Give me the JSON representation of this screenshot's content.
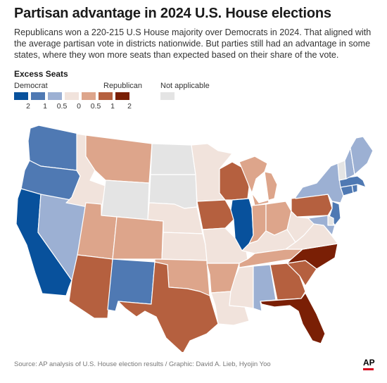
{
  "title": "Partisan advantage in 2024 U.S. House elections",
  "subtitle": "Republicans won a 220-215 U.S House majority over Democrats in 2024. That aligned with the average partisan vote in districts nationwide. But parties still had an advantage in some states, where they won more seats than expected based on their share of the vote.",
  "legend": {
    "title": "Excess Seats",
    "democrat_label": "Democrat",
    "republican_label": "Republican",
    "na_label": "Not applicable",
    "ticks": [
      "2",
      "1",
      "0.5",
      "0",
      "0.5",
      "1",
      "2"
    ],
    "colors": {
      "dem2": "#08519c",
      "dem1": "#4f79b3",
      "dem05": "#9cb0d3",
      "neutral": "#f1e3dc",
      "rep05": "#dda58b",
      "rep1": "#b5603f",
      "rep2": "#7a1f05",
      "na": "#e4e4e4"
    }
  },
  "source": "Source: AP analysis of U.S. House election results / Graphic: David A. Lieb, Hyojin Yoo",
  "logo": "AP",
  "states": {
    "WA": "dem1",
    "OR": "dem1",
    "CA": "dem2",
    "NV": "dem05",
    "ID": "neutral",
    "MT": "rep05",
    "WY": "na",
    "UT": "rep05",
    "AZ": "rep1",
    "CO": "rep05",
    "NM": "dem1",
    "ND": "na",
    "SD": "na",
    "NE": "neutral",
    "KS": "neutral",
    "OK": "rep05",
    "TX": "rep1",
    "MN": "neutral",
    "IA": "rep1",
    "MO": "neutral",
    "AR": "rep05",
    "LA": "neutral",
    "WI": "rep1",
    "IL": "dem2",
    "MI": "rep05",
    "IN": "rep05",
    "OH": "rep05",
    "KY": "neutral",
    "TN": "rep05",
    "MS": "neutral",
    "AL": "dem05",
    "GA": "rep1",
    "FL": "rep2",
    "SC": "rep1",
    "NC": "rep2",
    "VA": "neutral",
    "WV": "neutral",
    "PA": "rep1",
    "NY": "dem05",
    "ME": "dem05",
    "NH": "dem05",
    "VT": "na",
    "MA": "dem1",
    "CT": "dem1",
    "RI": "dem1",
    "NJ": "dem1",
    "DE": "na",
    "MD": "dem05"
  }
}
